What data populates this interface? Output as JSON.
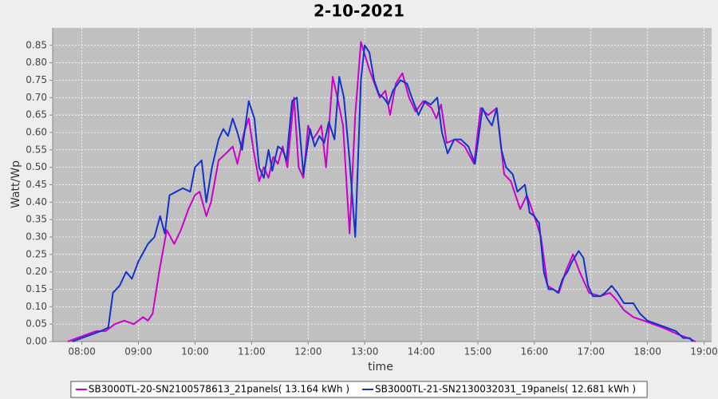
{
  "chart_data": {
    "type": "line",
    "title": "2-10-2021",
    "x_label": "time",
    "y_label": "Watt/Wp",
    "xlim": [
      "07:29",
      "19:08"
    ],
    "xticks": [
      "08:00",
      "09:00",
      "10:00",
      "11:00",
      "12:00",
      "13:00",
      "14:00",
      "15:00",
      "16:00",
      "17:00",
      "18:00",
      "19:00"
    ],
    "ylim": [
      0,
      0.9
    ],
    "yticks": [
      {
        "value": 0,
        "label": "0.00"
      },
      0.05,
      {
        "value": 0.1,
        "label": "0.10"
      },
      0.15,
      {
        "value": 0.2,
        "label": "0.20"
      },
      0.25,
      {
        "value": 0.3,
        "label": "0.30"
      },
      0.35,
      {
        "value": 0.4,
        "label": "0.40"
      },
      0.45,
      {
        "value": 0.5,
        "label": "0.50"
      },
      0.55,
      {
        "value": 0.6,
        "label": "0.60"
      },
      0.65,
      {
        "value": 0.7,
        "label": "0.70"
      },
      0.75,
      {
        "value": 0.8,
        "label": "0.80"
      },
      0.85
    ],
    "grid": true,
    "legend": "bottom",
    "series": [
      {
        "name": "SB3000TL-20-SN2100578613_21panels( 13.164 kWh )",
        "color": "#cc00cc",
        "x": [
          "07:45",
          "07:55",
          "08:05",
          "08:15",
          "08:25",
          "08:35",
          "08:45",
          "08:55",
          "09:05",
          "09:10",
          "09:15",
          "09:22",
          "09:30",
          "09:38",
          "09:45",
          "09:53",
          "10:00",
          "10:05",
          "10:12",
          "10:17",
          "10:25",
          "10:33",
          "10:40",
          "10:45",
          "10:52",
          "10:57",
          "11:02",
          "11:08",
          "11:13",
          "11:18",
          "11:23",
          "11:28",
          "11:33",
          "11:38",
          "11:45",
          "11:50",
          "11:55",
          "12:00",
          "12:05",
          "12:10",
          "12:14",
          "12:19",
          "12:26",
          "12:31",
          "12:37",
          "12:44",
          "12:50",
          "12:56",
          "13:05",
          "13:16",
          "13:22",
          "13:27",
          "13:33",
          "13:40",
          "13:47",
          "13:54",
          "14:02",
          "14:11",
          "14:16",
          "14:21",
          "14:27",
          "14:36",
          "14:46",
          "14:56",
          "15:03",
          "15:11",
          "15:20",
          "15:28",
          "15:35",
          "15:45",
          "15:52",
          "16:00",
          "16:07",
          "16:14",
          "16:26",
          "16:33",
          "16:41",
          "16:48",
          "16:58",
          "17:10",
          "17:20",
          "17:27",
          "17:35",
          "17:45",
          "17:56",
          "18:06",
          "18:16",
          "18:33",
          "18:43",
          "18:51"
        ],
        "values": [
          0.0,
          0.01,
          0.02,
          0.03,
          0.03,
          0.05,
          0.06,
          0.05,
          0.07,
          0.06,
          0.08,
          0.2,
          0.32,
          0.28,
          0.32,
          0.38,
          0.42,
          0.43,
          0.36,
          0.4,
          0.52,
          0.54,
          0.56,
          0.51,
          0.6,
          0.64,
          0.55,
          0.46,
          0.5,
          0.47,
          0.53,
          0.51,
          0.56,
          0.5,
          0.7,
          0.5,
          0.47,
          0.62,
          0.58,
          0.6,
          0.62,
          0.5,
          0.76,
          0.7,
          0.62,
          0.31,
          0.65,
          0.86,
          0.78,
          0.7,
          0.72,
          0.65,
          0.74,
          0.77,
          0.7,
          0.66,
          0.69,
          0.67,
          0.64,
          0.68,
          0.57,
          0.58,
          0.56,
          0.51,
          0.67,
          0.65,
          0.67,
          0.48,
          0.46,
          0.38,
          0.42,
          0.36,
          0.3,
          0.16,
          0.14,
          0.2,
          0.25,
          0.2,
          0.14,
          0.13,
          0.14,
          0.12,
          0.09,
          0.07,
          0.06,
          0.05,
          0.04,
          0.02,
          0.01,
          0.0
        ]
      },
      {
        "name": "SB3000TL-21-SN2130032031_19panels( 12.681 kWh )",
        "color": "#1133cc",
        "x": [
          "07:50",
          "08:00",
          "08:10",
          "08:20",
          "08:28",
          "08:33",
          "08:40",
          "08:47",
          "08:53",
          "09:00",
          "09:10",
          "09:17",
          "09:23",
          "09:28",
          "09:33",
          "09:40",
          "09:47",
          "09:55",
          "10:00",
          "10:07",
          "10:12",
          "10:18",
          "10:25",
          "10:30",
          "10:35",
          "10:40",
          "10:45",
          "10:50",
          "10:57",
          "11:03",
          "11:08",
          "11:13",
          "11:18",
          "11:22",
          "11:28",
          "11:33",
          "11:37",
          "11:43",
          "11:48",
          "11:55",
          "12:02",
          "12:07",
          "12:12",
          "12:17",
          "12:22",
          "12:28",
          "12:33",
          "12:38",
          "12:44",
          "12:50",
          "12:56",
          "13:00",
          "13:05",
          "13:10",
          "13:15",
          "13:20",
          "13:25",
          "13:30",
          "13:38",
          "13:45",
          "13:50",
          "13:57",
          "14:04",
          "14:10",
          "14:17",
          "14:22",
          "14:28",
          "14:35",
          "14:42",
          "14:50",
          "14:57",
          "15:05",
          "15:10",
          "15:15",
          "15:20",
          "15:25",
          "15:30",
          "15:37",
          "15:42",
          "15:50",
          "15:55",
          "16:00",
          "16:05",
          "16:10",
          "16:15",
          "16:20",
          "16:25",
          "16:30",
          "16:35",
          "16:40",
          "16:47",
          "16:52",
          "16:57",
          "17:02",
          "17:10",
          "17:15",
          "17:22",
          "17:28",
          "17:35",
          "17:45",
          "17:52",
          "18:00",
          "18:10",
          "18:20",
          "18:30",
          "18:38",
          "18:45",
          "18:48"
        ],
        "values": [
          0.0,
          0.01,
          0.02,
          0.03,
          0.04,
          0.14,
          0.16,
          0.2,
          0.18,
          0.23,
          0.28,
          0.3,
          0.36,
          0.31,
          0.42,
          0.43,
          0.44,
          0.43,
          0.5,
          0.52,
          0.4,
          0.5,
          0.58,
          0.61,
          0.59,
          0.64,
          0.6,
          0.55,
          0.69,
          0.64,
          0.5,
          0.47,
          0.55,
          0.49,
          0.56,
          0.55,
          0.52,
          0.69,
          0.7,
          0.48,
          0.61,
          0.56,
          0.59,
          0.57,
          0.63,
          0.58,
          0.76,
          0.7,
          0.52,
          0.3,
          0.75,
          0.85,
          0.83,
          0.75,
          0.71,
          0.7,
          0.68,
          0.72,
          0.75,
          0.74,
          0.7,
          0.65,
          0.69,
          0.68,
          0.7,
          0.6,
          0.54,
          0.58,
          0.58,
          0.56,
          0.51,
          0.67,
          0.64,
          0.62,
          0.67,
          0.55,
          0.5,
          0.48,
          0.43,
          0.45,
          0.37,
          0.36,
          0.34,
          0.2,
          0.15,
          0.15,
          0.14,
          0.18,
          0.2,
          0.23,
          0.26,
          0.24,
          0.16,
          0.13,
          0.13,
          0.14,
          0.16,
          0.14,
          0.11,
          0.11,
          0.08,
          0.06,
          0.05,
          0.04,
          0.03,
          0.01,
          0.01,
          0.0
        ]
      }
    ]
  }
}
